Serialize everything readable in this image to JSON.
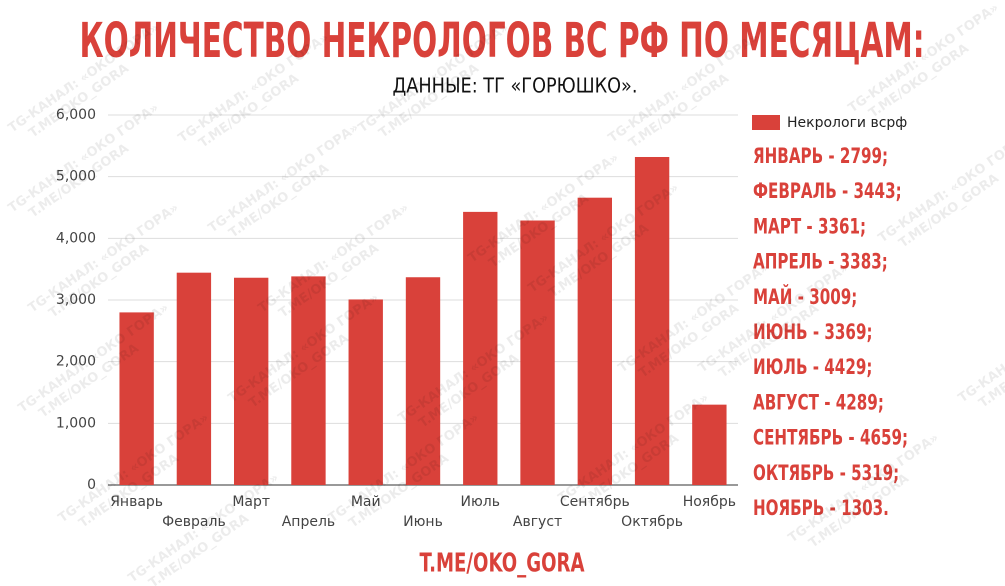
{
  "chart_data": {
    "type": "bar",
    "title": "КОЛИЧЕСТВО НЕКРОЛОГОВ ВС РФ ПО МЕСЯЦАМ:",
    "subtitle": "ДАННЫЕ: ТГ «ГОРЮШКО».",
    "categories": [
      "Январь",
      "Февраль",
      "Март",
      "Апрель",
      "Май",
      "Июнь",
      "Июль",
      "Август",
      "Сентябрь",
      "Октябрь",
      "Ноябрь"
    ],
    "series": [
      {
        "name": "Некрологи всрф",
        "color": "#d9413a",
        "values": [
          2799,
          3443,
          3361,
          3383,
          3009,
          3369,
          4429,
          4289,
          4659,
          5319,
          1303
        ]
      }
    ],
    "ylim": [
      0,
      6000
    ],
    "yticks": [
      0,
      {
        "value": 1000,
        "label": "1,000"
      },
      {
        "value": 2000,
        "label": "2,000"
      },
      {
        "value": 3000,
        "label": "3,000"
      },
      {
        "value": 4000,
        "label": "4,000"
      },
      {
        "value": 5000,
        "label": "5,000"
      },
      {
        "value": 6000,
        "label": "6,000"
      }
    ],
    "grid": true,
    "legend": "top-right",
    "annotations": [
      "ЯНВАРЬ - 2799;",
      "ФЕВРАЛЬ - 3443;",
      "МАРТ - 3361;",
      "АПРЕЛЬ - 3383;",
      "МАЙ - 3009;",
      "ИЮНЬ - 3369;",
      "ИЮЛЬ - 4429;",
      "АВГУСТ - 4289;",
      "СЕНТЯБРЬ - 4659;",
      "ОКТЯБРЬ - 5319;",
      "НОЯБРЬ - 1303."
    ],
    "footer": "T.ME/OKO_GORA",
    "watermark": [
      "TG-КАНАЛ: «ОКО ГОРА»",
      "T.ME/OKO_GORA"
    ]
  }
}
